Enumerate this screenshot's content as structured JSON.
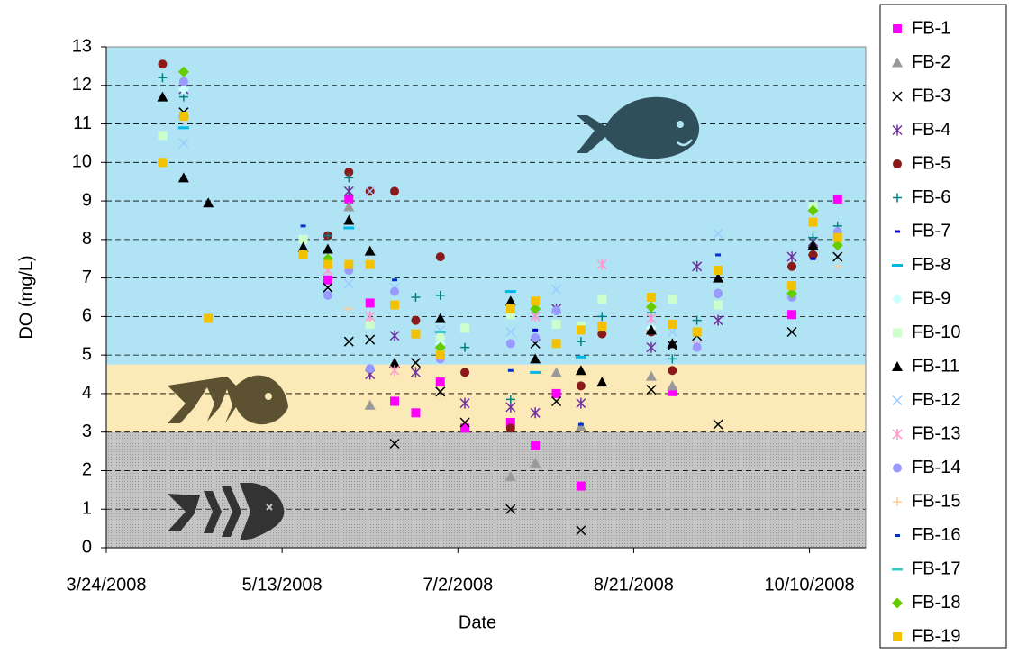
{
  "chart_data": {
    "type": "scatter",
    "x_label": "Date",
    "y_label": "DO (mg/L)",
    "xlim": [
      "3/24/2008",
      "10/26/2008"
    ],
    "xticks": [
      "3/24/2008",
      "5/13/2008",
      "7/2/2008",
      "8/21/2008",
      "10/10/2008"
    ],
    "ylim": [
      0,
      13
    ],
    "yticks": [
      0,
      1,
      2,
      3,
      4,
      5,
      6,
      7,
      8,
      9,
      10,
      11,
      12,
      13
    ],
    "grid": true,
    "legend": "right",
    "zones": [
      {
        "from": 4.75,
        "to": 13,
        "color": "#b0e4f5"
      },
      {
        "from": 3,
        "to": 4.75,
        "color": "#fbe9b7"
      },
      {
        "from": 0,
        "to": 3,
        "color": "#c4c4c4"
      }
    ],
    "x": [
      "4/9/2008",
      "4/15/2008",
      "4/22/2008",
      "5/19/2008",
      "5/26/2008",
      "6/1/2008",
      "6/7/2008",
      "6/14/2008",
      "6/20/2008",
      "6/27/2008",
      "7/4/2008",
      "7/17/2008",
      "7/24/2008",
      "7/30/2008",
      "8/6/2008",
      "8/12/2008",
      "8/26/2008",
      "9/1/2008",
      "9/8/2008",
      "9/14/2008",
      "10/5/2008",
      "10/11/2008",
      "10/18/2008"
    ],
    "series": [
      {
        "name": "FB-1",
        "color": "#ff00ff",
        "marker": "square",
        "values": [
          null,
          null,
          null,
          null,
          6.95,
          9.05,
          6.35,
          3.8,
          3.5,
          4.3,
          3.1,
          3.25,
          2.65,
          4.0,
          1.6,
          null,
          null,
          4.05,
          null,
          null,
          6.05,
          null,
          9.05
        ]
      },
      {
        "name": "FB-2",
        "color": "#999999",
        "marker": "triangle",
        "values": [
          null,
          null,
          null,
          null,
          null,
          8.85,
          3.7,
          null,
          null,
          null,
          null,
          1.85,
          2.2,
          4.55,
          3.15,
          null,
          4.45,
          4.2,
          null,
          null,
          null,
          null,
          null
        ]
      },
      {
        "name": "FB-3",
        "color": "#000000",
        "marker": "x",
        "values": [
          null,
          11.3,
          null,
          null,
          6.75,
          5.35,
          5.4,
          2.7,
          4.8,
          4.05,
          3.25,
          1.0,
          5.3,
          3.8,
          0.45,
          null,
          4.1,
          5.25,
          5.5,
          3.2,
          5.6,
          7.7,
          7.55
        ]
      },
      {
        "name": "FB-4",
        "color": "#7030a0",
        "marker": "star",
        "values": [
          null,
          11.9,
          null,
          null,
          null,
          9.25,
          4.5,
          5.5,
          4.55,
          null,
          3.75,
          3.65,
          3.5,
          6.2,
          3.75,
          null,
          5.2,
          null,
          7.3,
          5.9,
          7.55,
          7.95,
          null
        ]
      },
      {
        "name": "FB-5",
        "color": "#8b1a1a",
        "marker": "circle",
        "values": [
          12.55,
          null,
          null,
          null,
          8.1,
          9.75,
          9.25,
          9.25,
          5.9,
          7.55,
          4.55,
          3.1,
          null,
          null,
          4.2,
          5.55,
          5.6,
          4.6,
          null,
          6.6,
          7.3,
          7.6,
          null
        ]
      },
      {
        "name": "FB-6",
        "color": "#008080",
        "marker": "plus",
        "values": [
          12.2,
          11.7,
          null,
          null,
          8.1,
          9.6,
          null,
          null,
          6.5,
          6.55,
          5.2,
          3.85,
          null,
          null,
          5.35,
          6.0,
          6.1,
          4.9,
          5.9,
          null,
          null,
          8.05,
          8.35
        ]
      },
      {
        "name": "FB-7",
        "color": "#0000cc",
        "marker": "dash",
        "values": [
          null,
          null,
          null,
          null,
          null,
          null,
          null,
          null,
          null,
          null,
          null,
          null,
          5.65,
          null,
          null,
          null,
          null,
          null,
          null,
          null,
          null,
          7.5,
          null
        ]
      },
      {
        "name": "FB-8",
        "color": "#00b8e6",
        "marker": "longdash",
        "values": [
          null,
          10.9,
          null,
          null,
          null,
          8.3,
          null,
          null,
          null,
          null,
          null,
          6.65,
          4.55,
          null,
          4.95,
          null,
          null,
          null,
          null,
          null,
          null,
          null,
          null
        ]
      },
      {
        "name": "FB-9",
        "color": "#ccffff",
        "marker": "diamond",
        "values": [
          null,
          11.9,
          null,
          null,
          null,
          null,
          null,
          null,
          null,
          5.3,
          null,
          null,
          null,
          null,
          null,
          null,
          5.7,
          null,
          null,
          null,
          null,
          null,
          null
        ]
      },
      {
        "name": "FB-10",
        "color": "#ccffcc",
        "marker": "square",
        "values": [
          10.7,
          null,
          null,
          8.0,
          null,
          null,
          5.8,
          null,
          null,
          5.5,
          5.7,
          6.05,
          null,
          5.8,
          5.75,
          6.45,
          null,
          6.45,
          null,
          6.3,
          null,
          8.85,
          null
        ]
      },
      {
        "name": "FB-11",
        "color": "#000000",
        "marker": "triangle",
        "values": [
          11.7,
          9.6,
          8.95,
          7.8,
          7.75,
          8.5,
          7.7,
          4.8,
          null,
          5.95,
          null,
          6.4,
          4.9,
          null,
          4.6,
          4.3,
          5.65,
          5.3,
          null,
          7.0,
          null,
          7.85,
          null
        ]
      },
      {
        "name": "FB-12",
        "color": "#99ccff",
        "marker": "x",
        "values": [
          null,
          10.5,
          null,
          null,
          null,
          6.85,
          9.25,
          6.75,
          null,
          5.65,
          null,
          5.6,
          6.05,
          6.7,
          null,
          null,
          null,
          5.6,
          null,
          8.15,
          null,
          null,
          null
        ]
      },
      {
        "name": "FB-13",
        "color": "#ff99cc",
        "marker": "star",
        "values": [
          null,
          null,
          null,
          null,
          7.2,
          null,
          6.0,
          4.6,
          null,
          null,
          null,
          null,
          6.0,
          null,
          null,
          7.35,
          5.95,
          null,
          5.25,
          null,
          null,
          null,
          null
        ]
      },
      {
        "name": "FB-14",
        "color": "#9999ff",
        "marker": "circle",
        "values": [
          null,
          12.1,
          null,
          null,
          6.55,
          7.2,
          4.65,
          6.65,
          null,
          4.9,
          null,
          5.3,
          5.45,
          6.15,
          null,
          null,
          null,
          null,
          5.2,
          6.6,
          6.5,
          null,
          8.2
        ]
      },
      {
        "name": "FB-15",
        "color": "#ffcc99",
        "marker": "plus",
        "values": [
          null,
          11.1,
          null,
          null,
          null,
          6.2,
          null,
          null,
          null,
          null,
          null,
          null,
          null,
          null,
          null,
          null,
          null,
          null,
          null,
          null,
          null,
          null,
          7.3
        ]
      },
      {
        "name": "FB-16",
        "color": "#0033cc",
        "marker": "dash",
        "values": [
          null,
          null,
          null,
          8.35,
          null,
          null,
          null,
          6.95,
          null,
          null,
          null,
          4.6,
          null,
          null,
          3.2,
          null,
          null,
          null,
          null,
          7.6,
          null,
          null,
          null
        ]
      },
      {
        "name": "FB-17",
        "color": "#33cccc",
        "marker": "longdash",
        "values": [
          null,
          null,
          null,
          null,
          null,
          null,
          null,
          null,
          null,
          5.6,
          null,
          null,
          null,
          null,
          null,
          null,
          null,
          null,
          null,
          null,
          null,
          null,
          null
        ]
      },
      {
        "name": "FB-18",
        "color": "#66cc00",
        "marker": "diamond",
        "values": [
          null,
          12.35,
          null,
          null,
          7.5,
          null,
          null,
          null,
          null,
          5.2,
          null,
          null,
          6.2,
          null,
          null,
          null,
          6.25,
          null,
          null,
          null,
          6.6,
          8.75,
          7.85
        ]
      },
      {
        "name": "FB-19",
        "color": "#f2c200",
        "marker": "square",
        "values": [
          10.0,
          11.2,
          5.95,
          7.6,
          7.35,
          7.35,
          7.35,
          6.3,
          5.55,
          5.0,
          null,
          6.2,
          6.4,
          5.3,
          5.65,
          5.75,
          6.5,
          5.8,
          5.6,
          7.2,
          6.8,
          8.45,
          8.05
        ]
      }
    ]
  }
}
